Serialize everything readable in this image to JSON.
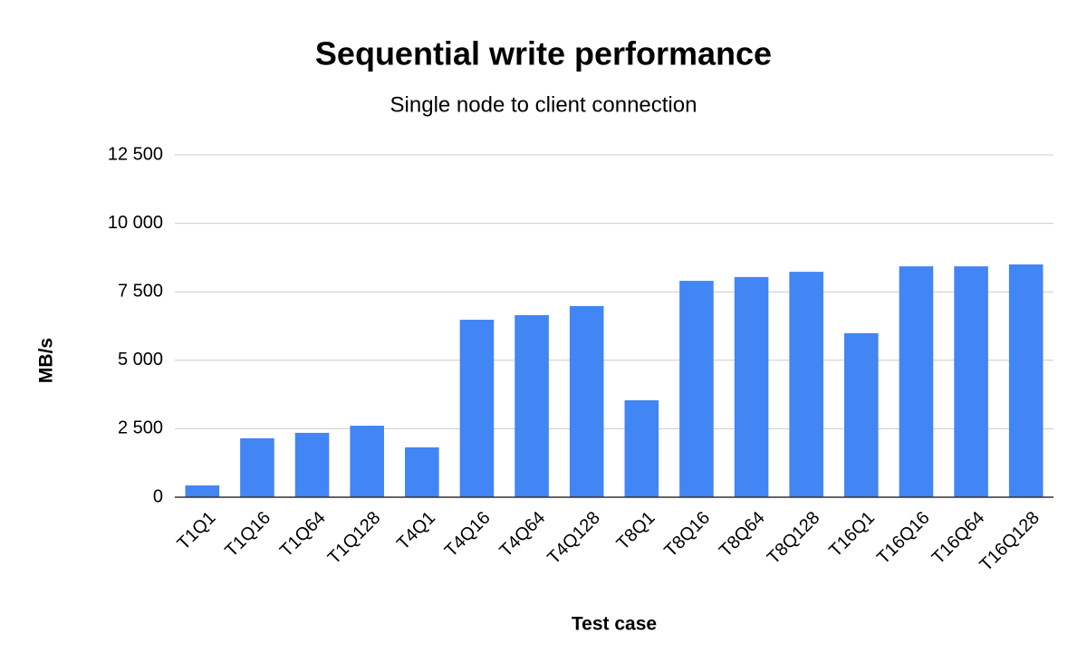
{
  "chart_data": {
    "type": "bar",
    "title": "Sequential write performance",
    "subtitle": "Single node to client connection",
    "x_label": "Test case",
    "y_label": "MB/s",
    "categories": [
      "T1Q1",
      "T1Q16",
      "T1Q64",
      "T1Q128",
      "T4Q1",
      "T4Q16",
      "T4Q64",
      "T4Q128",
      "T8Q1",
      "T8Q16",
      "T8Q64",
      "T8Q128",
      "T16Q1",
      "T16Q16",
      "T16Q64",
      "T16Q128"
    ],
    "values": [
      430,
      2150,
      2350,
      2610,
      1820,
      6480,
      6650,
      6980,
      3540,
      7900,
      8040,
      8230,
      5990,
      8430,
      8430,
      8500
    ],
    "color": "#4285f4",
    "ylim": [
      0,
      12500
    ],
    "yticks": [
      0,
      {
        "value": 2500,
        "label": "2 500"
      },
      {
        "value": 5000,
        "label": "5 000"
      },
      {
        "value": 7500,
        "label": "7 500"
      },
      {
        "value": 10000,
        "label": "10 000"
      },
      {
        "value": 12500,
        "label": "12 500"
      }
    ],
    "grid": true
  }
}
